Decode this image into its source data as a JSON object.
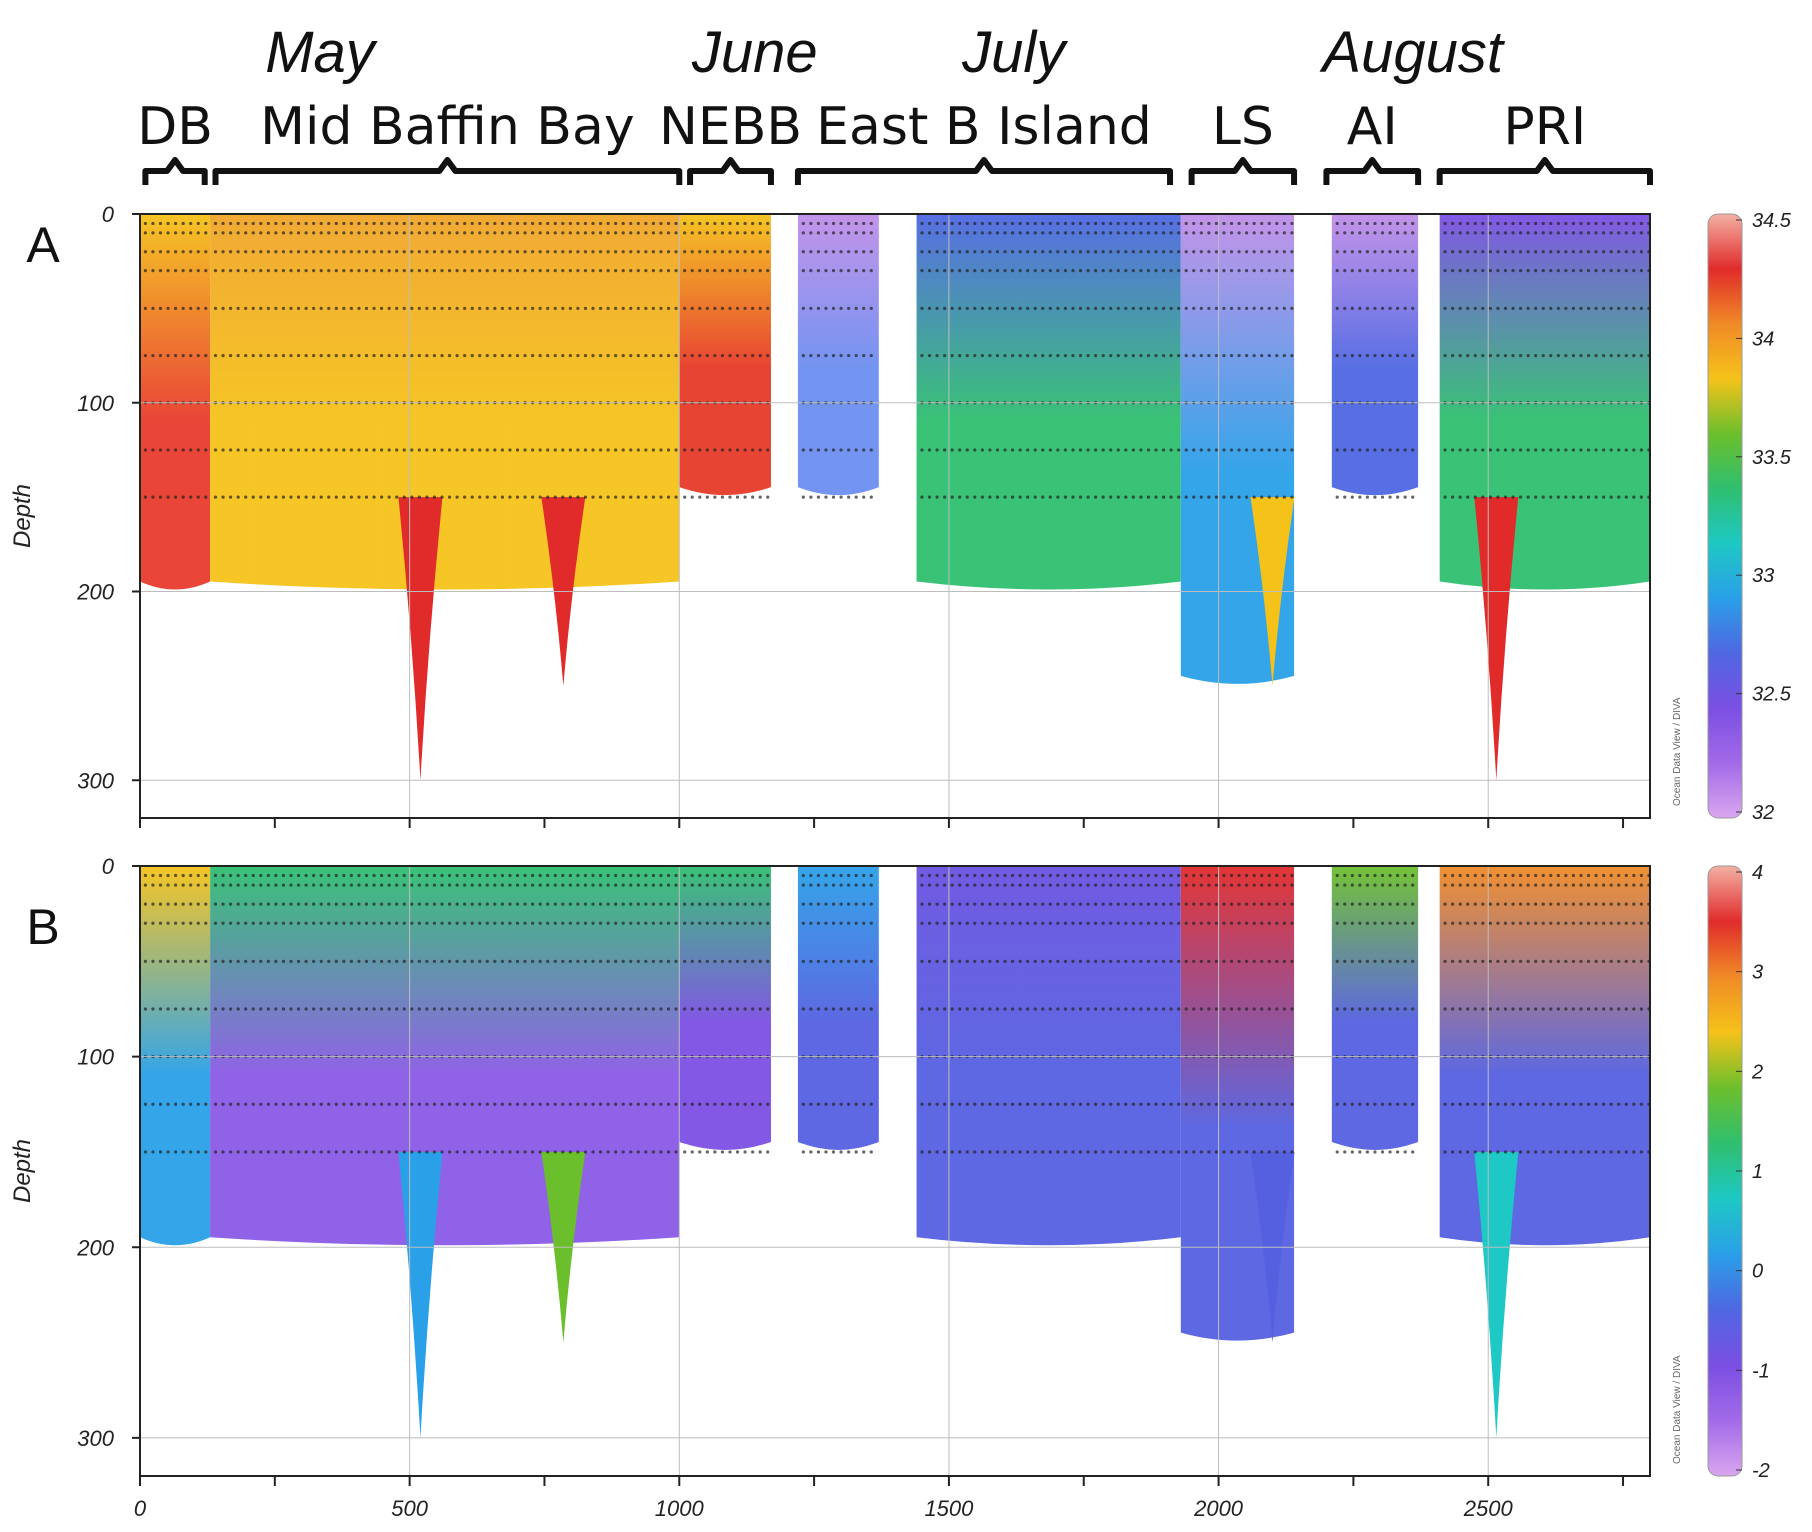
{
  "chart_data": [
    {
      "type": "heatmap",
      "panel": "A",
      "ylabel": "Depth",
      "xlim": [
        0,
        2800
      ],
      "ylim": [
        320,
        0
      ],
      "x_ticks": [
        "0",
        "500",
        "1000",
        "1500",
        "2000",
        "2500"
      ],
      "y_ticks": [
        "0",
        "100",
        "200",
        "300"
      ],
      "colorbar": {
        "range": [
          32,
          34.5
        ],
        "ticks": [
          "34.5",
          "34",
          "33.5",
          "33",
          "32.5",
          "32"
        ],
        "colors": [
          "#f3b0a3",
          "#e12b2b",
          "#f08a26",
          "#f5c21a",
          "#6cbf2c",
          "#2fbf6f",
          "#1ec8c4",
          "#2aa0e8",
          "#4f67e2",
          "#7b4fe3",
          "#a26ae8",
          "#d9a6ef"
        ]
      },
      "credit": "Ocean Data View / DIVA",
      "grid": true,
      "sections": [
        {
          "x": [
            0,
            130
          ],
          "max_depth": 200,
          "color": "#e83b2d",
          "tone": "#f5c21a"
        },
        {
          "x": [
            130,
            1000
          ],
          "max_depth": 200,
          "color": "#f5c21a",
          "tone": "#f0a52a"
        },
        {
          "x": [
            1000,
            1170
          ],
          "max_depth": 150,
          "color": "#e63a28",
          "tone": "#f5c21a"
        },
        {
          "x": [
            1220,
            1370
          ],
          "max_depth": 150,
          "color": "#6c8ef0",
          "tone": "#c08ee8"
        },
        {
          "x": [
            1440,
            1930
          ],
          "max_depth": 200,
          "color": "#2fbf6f",
          "tone": "#4f67e2"
        },
        {
          "x": [
            1930,
            2140
          ],
          "max_depth": 250,
          "color": "#2aa0e8",
          "tone": "#c08ee8"
        },
        {
          "x": [
            2210,
            2370
          ],
          "max_depth": 150,
          "color": "#4f67e2",
          "tone": "#c08ee8"
        },
        {
          "x": [
            2410,
            2800
          ],
          "max_depth": 200,
          "color": "#2fbf6f",
          "tone": "#7b4fe3"
        }
      ],
      "profiles": [
        {
          "x": 520,
          "max_depth": 300,
          "color": "#e12b2b"
        },
        {
          "x": 785,
          "max_depth": 250,
          "color": "#e12b2b"
        },
        {
          "x": 2100,
          "max_depth": 250,
          "color": "#f5c21a"
        },
        {
          "x": 2515,
          "max_depth": 300,
          "color": "#e12b2b"
        }
      ]
    },
    {
      "type": "heatmap",
      "panel": "B",
      "ylabel": "Depth",
      "xlim": [
        0,
        2800
      ],
      "ylim": [
        320,
        0
      ],
      "x_ticks": [
        "0",
        "500",
        "1000",
        "1500",
        "2000",
        "2500"
      ],
      "y_ticks": [
        "0",
        "100",
        "200",
        "300"
      ],
      "colorbar": {
        "range": [
          -2,
          4
        ],
        "ticks": [
          "4",
          "3",
          "2",
          "1",
          "0",
          "-1",
          "-2"
        ],
        "colors": [
          "#f3b0a3",
          "#e12b2b",
          "#f08a26",
          "#f5c21a",
          "#6cbf2c",
          "#2fbf6f",
          "#1ec8c4",
          "#2aa0e8",
          "#4f67e2",
          "#7b4fe3",
          "#a26ae8",
          "#d9a6ef"
        ]
      },
      "credit": "Ocean Data View / DIVA",
      "grid": true,
      "sections": [
        {
          "x": [
            0,
            130
          ],
          "max_depth": 200,
          "color": "#2aa0e8",
          "tone": "#f5c21a"
        },
        {
          "x": [
            130,
            1000
          ],
          "max_depth": 200,
          "color": "#8a5ae6",
          "tone": "#2fbf6f"
        },
        {
          "x": [
            1000,
            1170
          ],
          "max_depth": 150,
          "color": "#7b4fe3",
          "tone": "#2fbf6f"
        },
        {
          "x": [
            1220,
            1370
          ],
          "max_depth": 150,
          "color": "#5560e0",
          "tone": "#2aa0e8"
        },
        {
          "x": [
            1440,
            1930
          ],
          "max_depth": 200,
          "color": "#5560e0",
          "tone": "#6a52e0"
        },
        {
          "x": [
            1930,
            2140
          ],
          "max_depth": 250,
          "color": "#5560e0",
          "tone": "#e12b2b"
        },
        {
          "x": [
            2210,
            2370
          ],
          "max_depth": 150,
          "color": "#5560e0",
          "tone": "#6cbf2c"
        },
        {
          "x": [
            2410,
            2800
          ],
          "max_depth": 200,
          "color": "#5560e0",
          "tone": "#f08a26"
        }
      ],
      "profiles": [
        {
          "x": 520,
          "max_depth": 300,
          "color": "#2aa0e8"
        },
        {
          "x": 785,
          "max_depth": 250,
          "color": "#6cbf2c"
        },
        {
          "x": 2100,
          "max_depth": 250,
          "color": "#5560e0"
        },
        {
          "x": 2515,
          "max_depth": 300,
          "color": "#1ec8c4"
        }
      ]
    }
  ],
  "header": {
    "months": [
      {
        "label": "May",
        "x": 510
      },
      {
        "label": "June",
        "x": 1140
      },
      {
        "label": "July",
        "x": 1620
      },
      {
        "label": "August",
        "x": 2360
      }
    ],
    "regions": [
      {
        "label": "DB",
        "x_start": 10,
        "x_end": 120
      },
      {
        "label": "Mid Baffin Bay",
        "x_start": 140,
        "x_end": 1000
      },
      {
        "label": "NEBB",
        "x_start": 1020,
        "x_end": 1170
      },
      {
        "label": "East B Island",
        "x_start": 1220,
        "x_end": 1910
      },
      {
        "label": "LS",
        "x_start": 1950,
        "x_end": 2140
      },
      {
        "label": "AI",
        "x_start": 2200,
        "x_end": 2370
      },
      {
        "label": "PRI",
        "x_start": 2410,
        "x_end": 2800
      }
    ]
  }
}
